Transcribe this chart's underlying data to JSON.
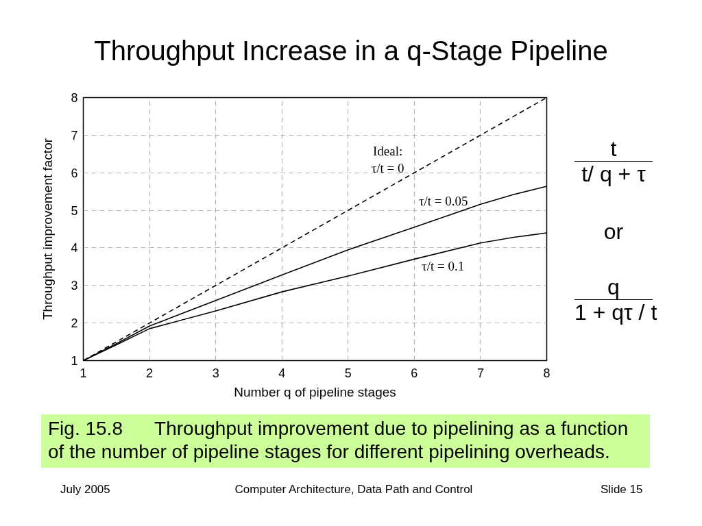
{
  "chart_data": {
    "type": "line",
    "title": "Throughput Increase in a q-Stage Pipeline",
    "xlabel": "Number q of pipeline stages",
    "ylabel": "Throughput improvement factor",
    "xlim": [
      1,
      8
    ],
    "ylim": [
      1,
      8
    ],
    "xticks": [
      1,
      2,
      3,
      4,
      5,
      6,
      7,
      8
    ],
    "yticks": [
      1,
      2,
      3,
      4,
      5,
      6,
      7,
      8
    ],
    "grid": true,
    "x": [
      1,
      1.5,
      2,
      3,
      4,
      5,
      6,
      7,
      7.5,
      8
    ],
    "series": [
      {
        "name": "Ideal:\nτ/t = 0",
        "color": "#000000",
        "line_style": "dashed",
        "values": [
          1,
          1.5,
          2,
          3,
          4,
          5,
          6,
          7,
          7.5,
          8
        ]
      },
      {
        "name": "τ/t = 0.05",
        "color": "#000000",
        "line_style": "solid",
        "values": [
          1,
          1.45,
          1.92,
          2.6,
          3.28,
          3.95,
          4.55,
          5.16,
          5.42,
          5.64
        ]
      },
      {
        "name": "τ/t = 0.1",
        "color": "#000000",
        "line_style": "solid",
        "values": [
          1,
          1.42,
          1.85,
          2.32,
          2.83,
          3.25,
          3.7,
          4.13,
          4.28,
          4.4
        ]
      }
    ],
    "annotations": [
      "t",
      "t/ q + τ",
      "or",
      "q",
      "1 + qτ / t",
      "Fig. 15.8      Throughput improvement due to pipelining as a function of the number of pipeline stages for different pipelining overheads.",
      "July 2005",
      "Computer Architecture, Data Path and Control",
      "Slide 15"
    ]
  }
}
